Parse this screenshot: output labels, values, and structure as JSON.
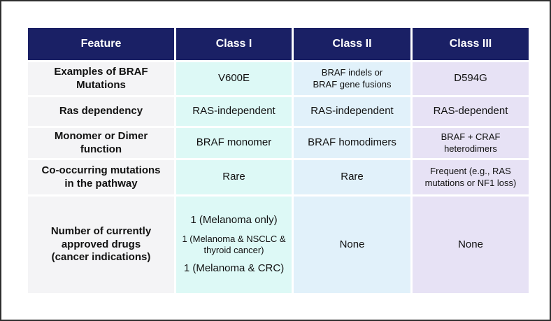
{
  "colors": {
    "header_bg": "#1a2065",
    "header_text": "#ffffff",
    "feature_col_bg": "#f4f4f6",
    "class1_col_bg": "#ddf9f6",
    "class2_col_bg": "#e1f1fa",
    "class3_col_bg": "#e7e2f5",
    "grid_gap": "#ffffff",
    "frame_border": "#2f2f2f",
    "body_text": "#111111"
  },
  "header": {
    "feature": "Feature",
    "class1": "Class I",
    "class2": "Class II",
    "class3": "Class III"
  },
  "rows": {
    "examples": {
      "feature": "Examples of BRAF\nMutations",
      "class1": "V600E",
      "class2": "BRAF indels or\nBRAF gene fusions",
      "class3": "D594G"
    },
    "ras_dependency": {
      "feature": "Ras dependency",
      "class1": "RAS-independent",
      "class2": "RAS-independent",
      "class3": "RAS-dependent"
    },
    "monomer_dimer": {
      "feature": "Monomer or Dimer\nfunction",
      "class1": "BRAF monomer",
      "class2": "BRAF homodimers",
      "class3": "BRAF + CRAF\nheterodimers"
    },
    "cooccurring": {
      "feature": "Co-occurring mutations\nin the pathway",
      "class1": "Rare",
      "class2": "Rare",
      "class3": "Frequent (e.g., RAS\nmutations or NF1 loss)"
    },
    "approved_drugs": {
      "feature": "Number of currently\napproved drugs\n(cancer indications)",
      "class1_lines": [
        "1 (Melanoma only)",
        "1 (Melanoma & NSCLC &\nthyroid cancer)",
        "1 (Melanoma & CRC)"
      ],
      "class2": "None",
      "class3": "None"
    }
  }
}
